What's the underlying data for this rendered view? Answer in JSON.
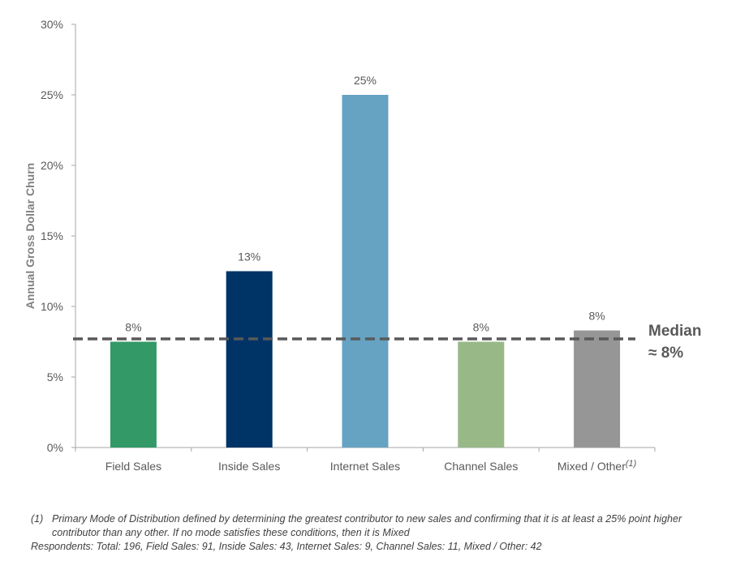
{
  "chart_data": {
    "type": "bar",
    "ylabel": "Annual Gross Dollar Churn",
    "ylim": [
      0,
      30
    ],
    "y_ticks": [
      "0%",
      "5%",
      "10%",
      "15%",
      "20%",
      "25%",
      "30%"
    ],
    "categories": [
      "Field Sales",
      "Inside Sales",
      "Internet Sales",
      "Channel Sales",
      "Mixed / Other"
    ],
    "category_superscripts": [
      "",
      "",
      "",
      "",
      "(1)"
    ],
    "values": [
      7.5,
      12.5,
      25,
      7.5,
      8.3
    ],
    "data_labels": [
      "8%",
      "13%",
      "25%",
      "8%",
      "8%"
    ],
    "colors": [
      "#339966",
      "#003366",
      "#66a3c2",
      "#99b888",
      "#969696"
    ],
    "median": {
      "value": 7.7,
      "label_line1": "Median",
      "label_line2": "≈ 8%",
      "color": "#595959"
    },
    "grid": false,
    "legend": "none"
  },
  "footnotes": {
    "note1_marker": "(1)",
    "note1_text": "Primary Mode of Distribution defined by determining the greatest contributor to new sales and confirming that it is at least a 25% point higher contributor than any other.  If no mode satisfies these conditions, then it is Mixed",
    "respondents": "Respondents: Total: 196, Field Sales: 91, Inside Sales: 43, Internet Sales: 9, Channel Sales: 11, Mixed / Other: 42"
  }
}
